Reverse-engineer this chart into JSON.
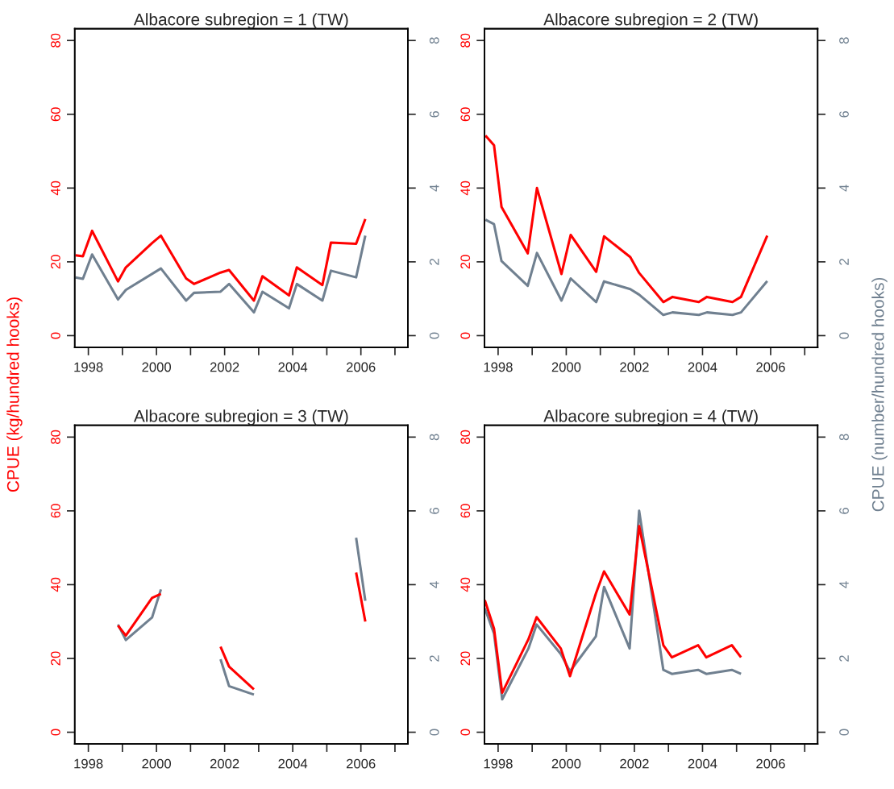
{
  "chart_data": [
    {
      "type": "line",
      "title": "Albacore subregion = 1 (TW)",
      "ylabel": "CPUE (kg/hundred hooks)",
      "xlim": [
        1997.6,
        2007.38
      ],
      "xticks": [
        1998,
        {
          "value": 1999,
          "label": null
        },
        2000,
        {
          "value": 2001,
          "label": null
        },
        2002,
        {
          "value": 2003,
          "label": null
        },
        2004,
        {
          "value": 2005,
          "label": null
        },
        2006,
        {
          "value": 2007,
          "label": null
        }
      ],
      "ylim": [
        -3.2,
        83.2
      ],
      "yticks": [
        0,
        20,
        40,
        60,
        80
      ],
      "y2lim": [
        -0.32,
        8.32
      ],
      "y2ticks": [
        0,
        2,
        4,
        6,
        8
      ],
      "series": [
        {
          "color": "#ff0000",
          "x": [
            1997.62,
            1997.84,
            1998.11,
            1998.87,
            1999.1,
            1999.87,
            2000.13,
            2000.87,
            2001.1,
            2001.88,
            2002.13,
            2002.86,
            2003.11,
            2003.89,
            2004.12,
            2004.87,
            2005.12,
            2005.86,
            2006.13
          ],
          "values": [
            21.8,
            21.5,
            28.4,
            14.7,
            18.5,
            25.1,
            27.1,
            15.5,
            14.0,
            17.1,
            17.8,
            9.5,
            16.1,
            10.9,
            18.5,
            13.7,
            25.2,
            24.9,
            31.6
          ]
        },
        {
          "color": "#708090",
          "axis": "y2",
          "x": [
            1997.62,
            1997.84,
            1998.11,
            1998.87,
            1999.1,
            2000.13,
            2000.87,
            2001.1,
            2001.88,
            2002.13,
            2002.86,
            2003.11,
            2003.89,
            2004.12,
            2004.87,
            2005.12,
            2005.86,
            2006.13
          ],
          "values": [
            1.58,
            1.54,
            2.2,
            0.98,
            1.24,
            1.82,
            0.95,
            1.16,
            1.19,
            1.4,
            0.63,
            1.19,
            0.74,
            1.4,
            0.95,
            1.76,
            1.58,
            2.71
          ]
        }
      ]
    },
    {
      "type": "line",
      "title": "Albacore subregion = 2 (TW)",
      "y2label": "CPUE (number/hundred hooks)",
      "xlim": [
        1997.6,
        2007.38
      ],
      "xticks": [
        1998,
        {
          "value": 1999,
          "label": null
        },
        2000,
        {
          "value": 2001,
          "label": null
        },
        2002,
        {
          "value": 2003,
          "label": null
        },
        2004,
        {
          "value": 2005,
          "label": null
        },
        2006,
        {
          "value": 2007,
          "label": null
        }
      ],
      "ylim": [
        -3.2,
        83.2
      ],
      "yticks": [
        0,
        20,
        40,
        60,
        80
      ],
      "y2lim": [
        -0.32,
        8.32
      ],
      "y2ticks": [
        0,
        2,
        4,
        6,
        8
      ],
      "series": [
        {
          "color": "#ff0000",
          "x": [
            1997.63,
            1997.88,
            1998.1,
            1998.87,
            1999.14,
            1999.86,
            2000.13,
            2000.88,
            2001.11,
            2001.88,
            2002.14,
            2002.85,
            2003.12,
            2003.89,
            2004.13,
            2004.88,
            2005.13,
            2005.9
          ],
          "values": [
            54.2,
            51.6,
            34.9,
            22.3,
            40.0,
            16.7,
            27.3,
            17.3,
            26.9,
            21.3,
            17.0,
            9.1,
            10.5,
            9.1,
            10.5,
            9.1,
            10.5,
            27.1
          ]
        },
        {
          "color": "#708090",
          "axis": "y2",
          "x": [
            1997.63,
            1997.88,
            1998.1,
            1998.87,
            1999.14,
            1999.86,
            2000.13,
            2000.88,
            2001.11,
            2001.88,
            2002.14,
            2002.85,
            2003.12,
            2003.89,
            2004.13,
            2004.88,
            2005.13,
            2005.9
          ],
          "values": [
            3.14,
            3.02,
            2.02,
            1.35,
            2.24,
            0.95,
            1.55,
            0.91,
            1.47,
            1.26,
            1.11,
            0.56,
            0.63,
            0.56,
            0.63,
            0.56,
            0.63,
            1.48
          ]
        }
      ]
    },
    {
      "type": "line",
      "title": "Albacore subregion = 3 (TW)",
      "xlim": [
        1997.6,
        2007.38
      ],
      "xticks": [
        1998,
        {
          "value": 1999,
          "label": null
        },
        2000,
        {
          "value": 2001,
          "label": null
        },
        2002,
        {
          "value": 2003,
          "label": null
        },
        2004,
        {
          "value": 2005,
          "label": null
        },
        2006,
        {
          "value": 2007,
          "label": null
        }
      ],
      "ylim": [
        -3.2,
        83.2
      ],
      "yticks": [
        0,
        20,
        40,
        60,
        80
      ],
      "y2lim": [
        -0.32,
        8.32
      ],
      "y2ticks": [
        0,
        2,
        4,
        6,
        8
      ],
      "series": [
        {
          "color": "#ff0000",
          "x": [
            1998.87,
            1999.1,
            1999.87,
            2000.13,
            2001.0,
            2001.88,
            2002.13,
            2002.86,
            2004.5,
            2005.86,
            2006.13
          ],
          "values": [
            28.9,
            26.2,
            36.4,
            37.5,
            null,
            23.2,
            17.8,
            11.6,
            null,
            43.3,
            30.0
          ]
        },
        {
          "color": "#708090",
          "axis": "y2",
          "x": [
            1998.87,
            1999.1,
            1999.87,
            2000.13,
            2001.0,
            2001.88,
            2002.13,
            2002.86,
            2004.5,
            2005.86,
            2006.13
          ],
          "values": [
            2.92,
            2.5,
            3.11,
            3.87,
            null,
            1.98,
            1.25,
            1.02,
            null,
            5.27,
            3.56
          ]
        }
      ]
    },
    {
      "type": "line",
      "title": "Albacore subregion = 4 (TW)",
      "xlim": [
        1997.6,
        2007.38
      ],
      "xticks": [
        1998,
        {
          "value": 1999,
          "label": null
        },
        2000,
        {
          "value": 2001,
          "label": null
        },
        2002,
        {
          "value": 2003,
          "label": null
        },
        2004,
        {
          "value": 2005,
          "label": null
        },
        2006,
        {
          "value": 2007,
          "label": null
        }
      ],
      "ylim": [
        -3.2,
        83.2
      ],
      "yticks": [
        0,
        20,
        40,
        60,
        80
      ],
      "y2lim": [
        -0.32,
        8.32
      ],
      "y2ticks": [
        0,
        2,
        4,
        6,
        8
      ],
      "series": [
        {
          "color": "#ff0000",
          "x": [
            1997.61,
            1997.88,
            1998.12,
            1998.89,
            1999.13,
            1999.84,
            2000.11,
            2000.87,
            2001.11,
            2001.86,
            2002.14,
            2002.85,
            2003.1,
            2003.87,
            2004.11,
            2004.86,
            2005.13
          ],
          "values": [
            35.8,
            28.1,
            10.7,
            25.2,
            31.2,
            22.7,
            15.2,
            37.6,
            43.6,
            31.9,
            55.9,
            23.6,
            20.3,
            23.6,
            20.3,
            23.6,
            20.3
          ]
        },
        {
          "color": "#708090",
          "axis": "y2",
          "x": [
            1997.61,
            1997.88,
            1998.12,
            1998.89,
            1999.13,
            1999.84,
            2000.11,
            2000.87,
            2001.11,
            2001.86,
            2002.14,
            2002.85,
            2003.1,
            2003.87,
            2004.11,
            2004.86,
            2005.13
          ],
          "values": [
            3.36,
            2.67,
            0.89,
            2.27,
            2.92,
            2.12,
            1.65,
            2.6,
            3.94,
            2.27,
            6.0,
            1.69,
            1.58,
            1.69,
            1.58,
            1.69,
            1.58
          ]
        }
      ]
    }
  ]
}
